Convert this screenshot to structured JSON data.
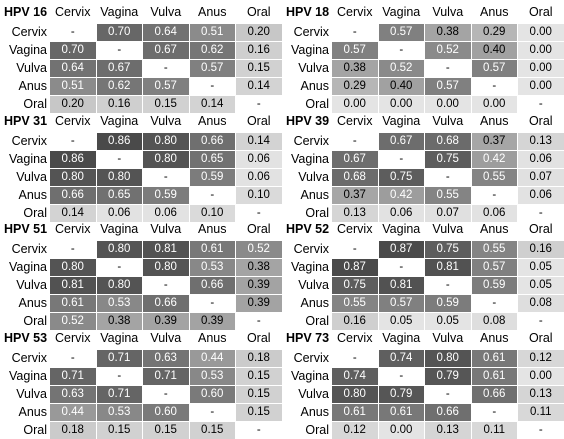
{
  "chart_data": [
    {
      "type": "heatmap",
      "title": "HPV 16",
      "columns": [
        "Cervix",
        "Vagina",
        "Vulva",
        "Anus",
        "Oral"
      ],
      "rows": [
        "Cervix",
        "Vagina",
        "Vulva",
        "Anus",
        "Oral"
      ],
      "values": [
        [
          "-",
          "0.70",
          "0.64",
          "0.51",
          "0.20"
        ],
        [
          "0.70",
          "-",
          "0.67",
          "0.62",
          "0.16"
        ],
        [
          "0.64",
          "0.67",
          "-",
          "0.57",
          "0.15"
        ],
        [
          "0.51",
          "0.62",
          "0.57",
          "-",
          "0.14"
        ],
        [
          "0.20",
          "0.16",
          "0.15",
          "0.14",
          "-"
        ]
      ]
    },
    {
      "type": "heatmap",
      "title": "HPV 18",
      "columns": [
        "Cervix",
        "Vagina",
        "Vulva",
        "Anus",
        "Oral"
      ],
      "rows": [
        "Cervix",
        "Vagina",
        "Vulva",
        "Anus",
        "Oral"
      ],
      "values": [
        [
          "-",
          "0.57",
          "0.38",
          "0.29",
          "0.00"
        ],
        [
          "0.57",
          "-",
          "0.52",
          "0.40",
          "0.00"
        ],
        [
          "0.38",
          "0.52",
          "-",
          "0.57",
          "0.00"
        ],
        [
          "0.29",
          "0.40",
          "0.57",
          "-",
          "0.00"
        ],
        [
          "0.00",
          "0.00",
          "0.00",
          "0.00",
          "-"
        ]
      ]
    },
    {
      "type": "heatmap",
      "title": "HPV 31",
      "columns": [
        "Cervix",
        "Vagina",
        "Vulva",
        "Anus",
        "Oral"
      ],
      "rows": [
        "Cervix",
        "Vagina",
        "Vulva",
        "Anus",
        "Oral"
      ],
      "values": [
        [
          "-",
          "0.86",
          "0.80",
          "0.66",
          "0.14"
        ],
        [
          "0.86",
          "-",
          "0.80",
          "0.65",
          "0.06"
        ],
        [
          "0.80",
          "0.80",
          "-",
          "0.59",
          "0.06"
        ],
        [
          "0.66",
          "0.65",
          "0.59",
          "-",
          "0.10"
        ],
        [
          "0.14",
          "0.06",
          "0.06",
          "0.10",
          "-"
        ]
      ]
    },
    {
      "type": "heatmap",
      "title": "HPV 39",
      "columns": [
        "Cervix",
        "Vagina",
        "Vulva",
        "Anus",
        "Oral"
      ],
      "rows": [
        "Cervix",
        "Vagina",
        "Vulva",
        "Anus",
        "Oral"
      ],
      "values": [
        [
          "-",
          "0.67",
          "0.68",
          "0.37",
          "0.13"
        ],
        [
          "0.67",
          "-",
          "0.75",
          "0.42",
          "0.06"
        ],
        [
          "0.68",
          "0.75",
          "-",
          "0.55",
          "0.07"
        ],
        [
          "0.37",
          "0.42",
          "0.55",
          "-",
          "0.06"
        ],
        [
          "0.13",
          "0.06",
          "0.07",
          "0.06",
          "-"
        ]
      ]
    },
    {
      "type": "heatmap",
      "title": "HPV 51",
      "columns": [
        "Cervix",
        "Vagina",
        "Vulva",
        "Anus",
        "Oral"
      ],
      "rows": [
        "Cervix",
        "Vagina",
        "Vulva",
        "Anus",
        "Oral"
      ],
      "values": [
        [
          "-",
          "0.80",
          "0.81",
          "0.61",
          "0.52"
        ],
        [
          "0.80",
          "-",
          "0.80",
          "0.53",
          "0.38"
        ],
        [
          "0.81",
          "0.80",
          "-",
          "0.66",
          "0.39"
        ],
        [
          "0.61",
          "0.53",
          "0.66",
          "-",
          "0.39"
        ],
        [
          "0.52",
          "0.38",
          "0.39",
          "0.39",
          "-"
        ]
      ]
    },
    {
      "type": "heatmap",
      "title": "HPV 52",
      "columns": [
        "Cervix",
        "Vagina",
        "Vulva",
        "Anus",
        "Oral"
      ],
      "rows": [
        "Cervix",
        "Vagina",
        "Vulva",
        "Anus",
        "Oral"
      ],
      "values": [
        [
          "-",
          "0.87",
          "0.75",
          "0.55",
          "0.16"
        ],
        [
          "0.87",
          "-",
          "0.81",
          "0.57",
          "0.05"
        ],
        [
          "0.75",
          "0.81",
          "-",
          "0.59",
          "0.05"
        ],
        [
          "0.55",
          "0.57",
          "0.59",
          "-",
          "0.08"
        ],
        [
          "0.16",
          "0.05",
          "0.05",
          "0.08",
          "-"
        ]
      ]
    },
    {
      "type": "heatmap",
      "title": "HPV 53",
      "columns": [
        "Cervix",
        "Vagina",
        "Vulva",
        "Anus",
        "Oral"
      ],
      "rows": [
        "Cervix",
        "Vagina",
        "Vulva",
        "Anus",
        "Oral"
      ],
      "values": [
        [
          "-",
          "0.71",
          "0.63",
          "0.44",
          "0.18"
        ],
        [
          "0.71",
          "-",
          "0.71",
          "0.53",
          "0.15"
        ],
        [
          "0.63",
          "0.71",
          "-",
          "0.60",
          "0.15"
        ],
        [
          "0.44",
          "0.53",
          "0.60",
          "-",
          "0.15"
        ],
        [
          "0.18",
          "0.15",
          "0.15",
          "0.15",
          "-"
        ]
      ]
    },
    {
      "type": "heatmap",
      "title": "HPV 73",
      "columns": [
        "Cervix",
        "Vagina",
        "Vulva",
        "Anus",
        "Oral"
      ],
      "rows": [
        "Cervix",
        "Vagina",
        "Vulva",
        "Anus",
        "Oral"
      ],
      "values": [
        [
          "-",
          "0.74",
          "0.80",
          "0.61",
          "0.12"
        ],
        [
          "0.74",
          "-",
          "0.79",
          "0.61",
          "0.00"
        ],
        [
          "0.80",
          "0.79",
          "-",
          "0.66",
          "0.13"
        ],
        [
          "0.61",
          "0.61",
          "0.66",
          "-",
          "0.11"
        ],
        [
          "0.12",
          "0.00",
          "0.13",
          "0.11",
          "-"
        ]
      ]
    }
  ],
  "colors": {
    "dark": "#4a4a4a",
    "light": "#e4e4e4",
    "diagonal": "#ffffff",
    "text_on_dark": "#ffffff",
    "text_on_light": "#000000"
  }
}
